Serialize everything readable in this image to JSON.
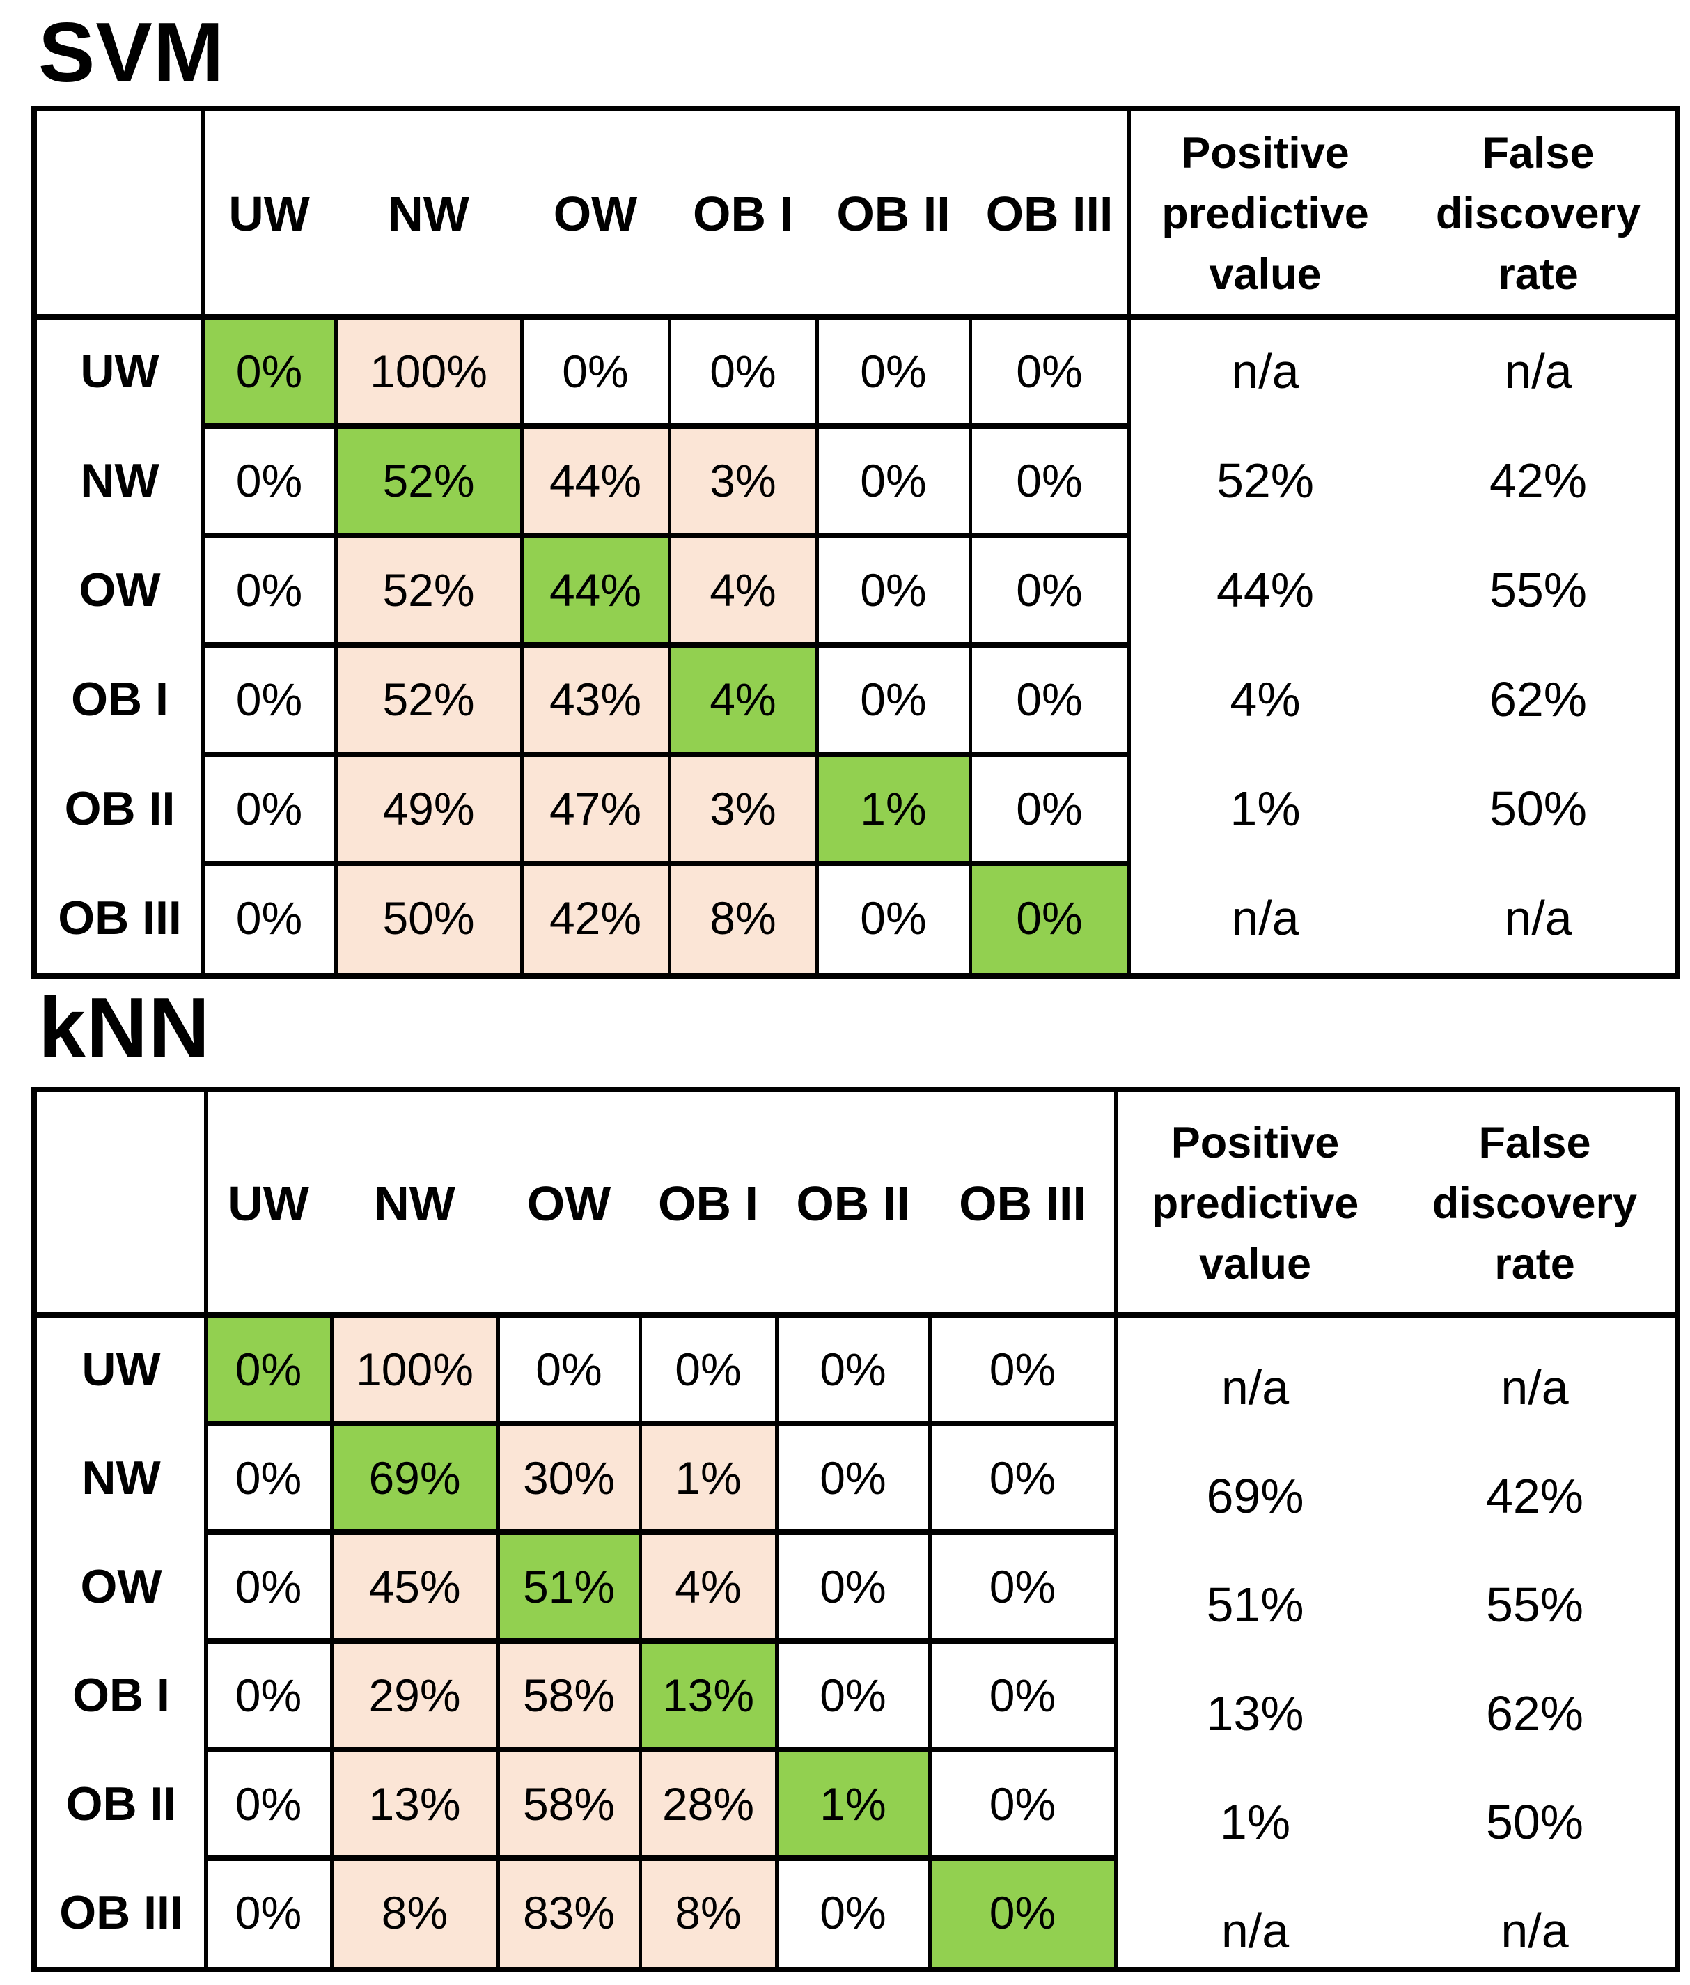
{
  "figure": {
    "background": "#FFFFFF",
    "description": "Two confusion matrices comparing classifiers"
  },
  "colors": {
    "green": "#92D050",
    "pink": "#FBE5D6",
    "white": "#FFFFFF",
    "border": "#000000",
    "text": "#000000"
  },
  "tables": [
    {
      "id": "svm",
      "title": "SVM",
      "column_headers": [
        "UW",
        "NW",
        "OW",
        "OB I",
        "OB II",
        "OB III"
      ],
      "ppv_header_lines": [
        "Positive",
        "predictive",
        "value"
      ],
      "fdr_header_lines": [
        "False",
        "discovery",
        "rate"
      ],
      "rows": [
        {
          "label": "UW",
          "values": [
            "0%",
            "100%",
            "0%",
            "0%",
            "0%",
            "0%"
          ],
          "fills": [
            "green",
            "pink",
            "white",
            "white",
            "white",
            "white"
          ],
          "ppv": "n/a",
          "fdr": "n/a"
        },
        {
          "label": "NW",
          "values": [
            "0%",
            "52%",
            "44%",
            "3%",
            "0%",
            "0%"
          ],
          "fills": [
            "white",
            "green",
            "pink",
            "pink",
            "white",
            "white"
          ],
          "ppv": "52%",
          "fdr": "42%"
        },
        {
          "label": "OW",
          "values": [
            "0%",
            "52%",
            "44%",
            "4%",
            "0%",
            "0%"
          ],
          "fills": [
            "white",
            "pink",
            "green",
            "pink",
            "white",
            "white"
          ],
          "ppv": "44%",
          "fdr": "55%"
        },
        {
          "label": "OB I",
          "values": [
            "0%",
            "52%",
            "43%",
            "4%",
            "0%",
            "0%"
          ],
          "fills": [
            "white",
            "pink",
            "pink",
            "green",
            "white",
            "white"
          ],
          "ppv": "4%",
          "fdr": "62%"
        },
        {
          "label": "OB II",
          "values": [
            "0%",
            "49%",
            "47%",
            "3%",
            "1%",
            "0%"
          ],
          "fills": [
            "white",
            "pink",
            "pink",
            "pink",
            "green",
            "white"
          ],
          "ppv": "1%",
          "fdr": "50%"
        },
        {
          "label": "OB III",
          "values": [
            "0%",
            "50%",
            "42%",
            "8%",
            "0%",
            "0%"
          ],
          "fills": [
            "white",
            "pink",
            "pink",
            "pink",
            "white",
            "green"
          ],
          "ppv": "n/a",
          "fdr": "n/a"
        }
      ]
    },
    {
      "id": "knn",
      "title": "kNN",
      "column_headers": [
        "UW",
        "NW",
        "OW",
        "OB I",
        "OB II",
        "OB III"
      ],
      "ppv_header_lines": [
        "Positive",
        "predictive",
        "value"
      ],
      "fdr_header_lines": [
        "False",
        "discovery",
        "rate"
      ],
      "rows": [
        {
          "label": "UW",
          "values": [
            "0%",
            "100%",
            "0%",
            "0%",
            "0%",
            "0%"
          ],
          "fills": [
            "green",
            "pink",
            "white",
            "white",
            "white",
            "white"
          ],
          "ppv": "n/a",
          "fdr": "n/a"
        },
        {
          "label": "NW",
          "values": [
            "0%",
            "69%",
            "30%",
            "1%",
            "0%",
            "0%"
          ],
          "fills": [
            "white",
            "green",
            "pink",
            "pink",
            "white",
            "white"
          ],
          "ppv": "69%",
          "fdr": "42%"
        },
        {
          "label": "OW",
          "values": [
            "0%",
            "45%",
            "51%",
            "4%",
            "0%",
            "0%"
          ],
          "fills": [
            "white",
            "pink",
            "green",
            "pink",
            "white",
            "white"
          ],
          "ppv": "51%",
          "fdr": "55%"
        },
        {
          "label": "OB I",
          "values": [
            "0%",
            "29%",
            "58%",
            "13%",
            "0%",
            "0%"
          ],
          "fills": [
            "white",
            "pink",
            "pink",
            "green",
            "white",
            "white"
          ],
          "ppv": "13%",
          "fdr": "62%"
        },
        {
          "label": "OB II",
          "values": [
            "0%",
            "13%",
            "58%",
            "28%",
            "1%",
            "0%"
          ],
          "fills": [
            "white",
            "pink",
            "pink",
            "pink",
            "green",
            "white"
          ],
          "ppv": "1%",
          "fdr": "50%"
        },
        {
          "label": "OB III",
          "values": [
            "0%",
            "8%",
            "83%",
            "8%",
            "0%",
            "0%"
          ],
          "fills": [
            "white",
            "pink",
            "pink",
            "pink",
            "white",
            "green"
          ],
          "ppv": "n/a",
          "fdr": "n/a"
        }
      ]
    }
  ],
  "chart_data": [
    {
      "type": "heatmap",
      "title": "SVM",
      "x": [
        "UW",
        "NW",
        "OW",
        "OB I",
        "OB II",
        "OB III"
      ],
      "y": [
        "UW",
        "NW",
        "OW",
        "OB I",
        "OB II",
        "OB III"
      ],
      "values_percent": [
        [
          0,
          100,
          0,
          0,
          0,
          0
        ],
        [
          0,
          52,
          44,
          3,
          0,
          0
        ],
        [
          0,
          52,
          44,
          4,
          0,
          0
        ],
        [
          0,
          52,
          43,
          4,
          0,
          0
        ],
        [
          0,
          49,
          47,
          3,
          1,
          0
        ],
        [
          0,
          50,
          42,
          8,
          0,
          0
        ]
      ],
      "positive_predictive_value": [
        "n/a",
        "52%",
        "44%",
        "4%",
        "1%",
        "n/a"
      ],
      "false_discovery_rate": [
        "n/a",
        "42%",
        "55%",
        "62%",
        "50%",
        "n/a"
      ]
    },
    {
      "type": "heatmap",
      "title": "kNN",
      "x": [
        "UW",
        "NW",
        "OW",
        "OB I",
        "OB II",
        "OB III"
      ],
      "y": [
        "UW",
        "NW",
        "OW",
        "OB I",
        "OB II",
        "OB III"
      ],
      "values_percent": [
        [
          0,
          100,
          0,
          0,
          0,
          0
        ],
        [
          0,
          69,
          30,
          1,
          0,
          0
        ],
        [
          0,
          45,
          51,
          4,
          0,
          0
        ],
        [
          0,
          29,
          58,
          13,
          0,
          0
        ],
        [
          0,
          13,
          58,
          28,
          1,
          0
        ],
        [
          0,
          8,
          83,
          8,
          0,
          0
        ]
      ],
      "positive_predictive_value": [
        "n/a",
        "69%",
        "51%",
        "13%",
        "1%",
        "n/a"
      ],
      "false_discovery_rate": [
        "n/a",
        "42%",
        "55%",
        "62%",
        "50%",
        "n/a"
      ]
    }
  ]
}
